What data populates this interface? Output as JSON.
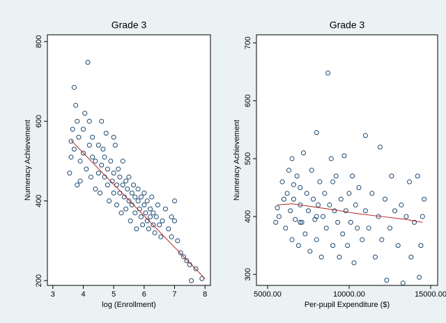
{
  "chart_data": [
    {
      "type": "scatter",
      "title": "Grade 3",
      "x_label": "log (Enrollment)",
      "y_label": "Numeracy Achievement",
      "color": "#1a476f",
      "x": [
        3.6,
        3.55,
        3.6,
        3.65,
        3.7,
        3.75,
        3.8,
        3.7,
        3.85,
        3.9,
        3.9,
        4.0,
        4.0,
        4.05,
        4.1,
        4.15,
        4.2,
        4.2,
        4.25,
        4.3,
        4.3,
        4.4,
        4.4,
        4.5,
        4.5,
        4.55,
        4.6,
        4.65,
        4.7,
        4.7,
        4.75,
        4.8,
        4.8,
        4.85,
        4.9,
        4.95,
        5.0,
        5.0,
        5.05,
        5.1,
        5.1,
        5.15,
        5.2,
        5.2,
        5.25,
        5.3,
        5.3,
        5.35,
        5.4,
        5.4,
        5.45,
        5.5,
        5.5,
        5.55,
        5.6,
        5.6,
        5.65,
        5.7,
        5.7,
        5.75,
        5.8,
        5.8,
        5.85,
        5.9,
        5.9,
        5.95,
        6.0,
        6.0,
        6.05,
        6.1,
        6.1,
        6.15,
        6.2,
        6.2,
        6.25,
        6.3,
        6.3,
        6.35,
        6.4,
        6.45,
        6.5,
        6.55,
        6.6,
        6.7,
        6.8,
        6.9,
        7.0,
        7.1,
        7.2,
        7.3,
        7.4,
        7.5,
        7.55,
        7.7,
        7.9,
        6.9,
        7.0,
        3.8,
        4.6,
        5.0
      ],
      "y": [
        550,
        470,
        510,
        580,
        685,
        640,
        600,
        530,
        560,
        500,
        450,
        520,
        580,
        620,
        480,
        748,
        540,
        600,
        460,
        510,
        560,
        430,
        500,
        470,
        540,
        420,
        490,
        530,
        460,
        510,
        570,
        440,
        480,
        400,
        500,
        450,
        420,
        470,
        540,
        440,
        390,
        480,
        460,
        420,
        370,
        440,
        500,
        410,
        450,
        380,
        430,
        400,
        460,
        350,
        420,
        390,
        440,
        410,
        370,
        330,
        400,
        430,
        380,
        360,
        410,
        340,
        390,
        420,
        370,
        350,
        400,
        330,
        380,
        360,
        410,
        340,
        370,
        320,
        360,
        390,
        340,
        310,
        350,
        380,
        330,
        310,
        350,
        300,
        270,
        260,
        250,
        240,
        200,
        230,
        205,
        360,
        400,
        440,
        600,
        560
      ],
      "fit": {
        "color": "#b22222",
        "x": [
          3.6,
          8
        ],
        "y": [
          552,
          205
        ]
      },
      "xlim": [
        2.82,
        8.18
      ],
      "ylim": [
        188,
        817
      ],
      "xticks": [
        3,
        4,
        5,
        6,
        7,
        8
      ],
      "yticks": [
        200,
        400,
        600,
        800
      ]
    },
    {
      "type": "scatter",
      "title": "Grade 3",
      "x_label": "Per-pupil Expenditure ($)",
      "y_label": "Numeracy Achievement",
      "color": "#1a476f",
      "x": [
        5600,
        5700,
        5900,
        6000,
        6100,
        6200,
        6300,
        6400,
        6500,
        6500,
        6600,
        6700,
        6800,
        6900,
        7000,
        7000,
        7100,
        7200,
        7300,
        7400,
        7500,
        7600,
        7700,
        7800,
        7900,
        8000,
        8000,
        8100,
        8200,
        8300,
        8400,
        8500,
        8600,
        8700,
        8800,
        8900,
        9000,
        9100,
        9200,
        9300,
        9400,
        9500,
        9600,
        9700,
        9800,
        9900,
        10000,
        10100,
        10200,
        10300,
        10400,
        10500,
        10600,
        10800,
        11000,
        11000,
        11200,
        11400,
        11600,
        11800,
        11900,
        12000,
        12200,
        12300,
        12500,
        12600,
        12800,
        13000,
        13200,
        13300,
        13500,
        13700,
        13800,
        14000,
        14200,
        14300,
        14400,
        14500,
        14600,
        5500,
        9000,
        8000,
        7000,
        6600
      ],
      "y": [
        415,
        400,
        460,
        430,
        380,
        440,
        480,
        410,
        360,
        500,
        430,
        395,
        470,
        350,
        420,
        450,
        390,
        510,
        370,
        440,
        410,
        340,
        480,
        430,
        395,
        545,
        360,
        420,
        460,
        330,
        400,
        440,
        380,
        648,
        420,
        500,
        350,
        410,
        470,
        390,
        330,
        430,
        370,
        505,
        410,
        350,
        440,
        390,
        470,
        320,
        420,
        380,
        450,
        360,
        410,
        540,
        380,
        440,
        330,
        400,
        520,
        360,
        430,
        290,
        380,
        470,
        410,
        350,
        420,
        285,
        400,
        460,
        330,
        390,
        470,
        295,
        350,
        400,
        430,
        390,
        460,
        400,
        390,
        455
      ],
      "fit": {
        "color": "#b22222",
        "x": [
          5600,
          6500,
          7500,
          9000,
          10500,
          12000,
          13500,
          14500
        ],
        "y": [
          420,
          422,
          418,
          412,
          405,
          400,
          395,
          390
        ]
      },
      "xlim": [
        4316,
        15427
      ],
      "ylim": [
        281,
        714
      ],
      "xticks": [
        {
          "value": 5000,
          "label": "5000.00"
        },
        {
          "value": 10000,
          "label": "10000.00"
        },
        {
          "value": 15000,
          "label": "15000.00"
        }
      ],
      "yticks": [
        300,
        400,
        500,
        600,
        700
      ]
    }
  ]
}
